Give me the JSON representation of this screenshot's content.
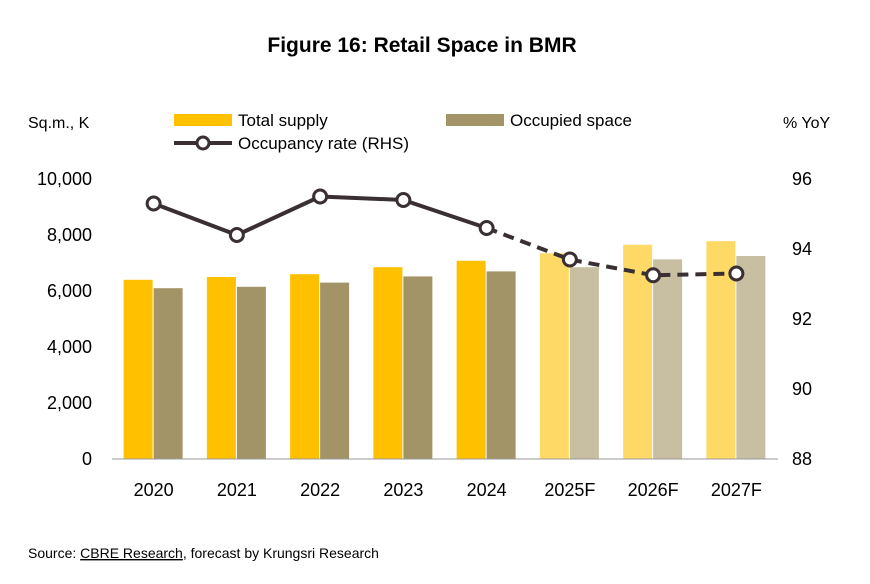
{
  "chart_data": {
    "type": "bar",
    "title": "Figure 16: Retail Space in BMR",
    "categories": [
      "2020",
      "2021",
      "2022",
      "2023",
      "2024",
      "2025F",
      "2026F",
      "2027F"
    ],
    "forecast_categories": [
      "2025F",
      "2026F",
      "2027F"
    ],
    "y_left_label": "Sq.m., K",
    "y_right_label": "% YoY",
    "ylim_left": [
      0,
      10000
    ],
    "ylim_right": [
      88,
      96
    ],
    "y_left_ticks": [
      "0",
      "2,000",
      "4,000",
      "6,000",
      "8,000",
      "10,000"
    ],
    "y_right_ticks": [
      "88",
      "90",
      "92",
      "94",
      "96"
    ],
    "grid": false,
    "legend_position": "top",
    "series": [
      {
        "name": "Total supply",
        "type": "bar",
        "axis": "left",
        "color": "#FFC000",
        "forecast_color": "#FFD966",
        "values": [
          6400,
          6500,
          6600,
          6850,
          7080,
          7350,
          7650,
          7780
        ]
      },
      {
        "name": "Occupied space",
        "type": "bar",
        "axis": "left",
        "color": "#A39467",
        "forecast_color": "#C8BFA3",
        "values": [
          6100,
          6150,
          6300,
          6520,
          6700,
          6850,
          7130,
          7250
        ]
      },
      {
        "name": "Occupancy rate (RHS)",
        "type": "line",
        "axis": "right",
        "color": "#3A3033",
        "values": [
          95.3,
          94.4,
          95.5,
          95.4,
          94.6,
          93.7,
          93.25,
          93.3
        ]
      }
    ]
  },
  "source": {
    "prefix": "Source: ",
    "link": "CBRE Research",
    "suffix": ", forecast by Krungsri Research"
  }
}
